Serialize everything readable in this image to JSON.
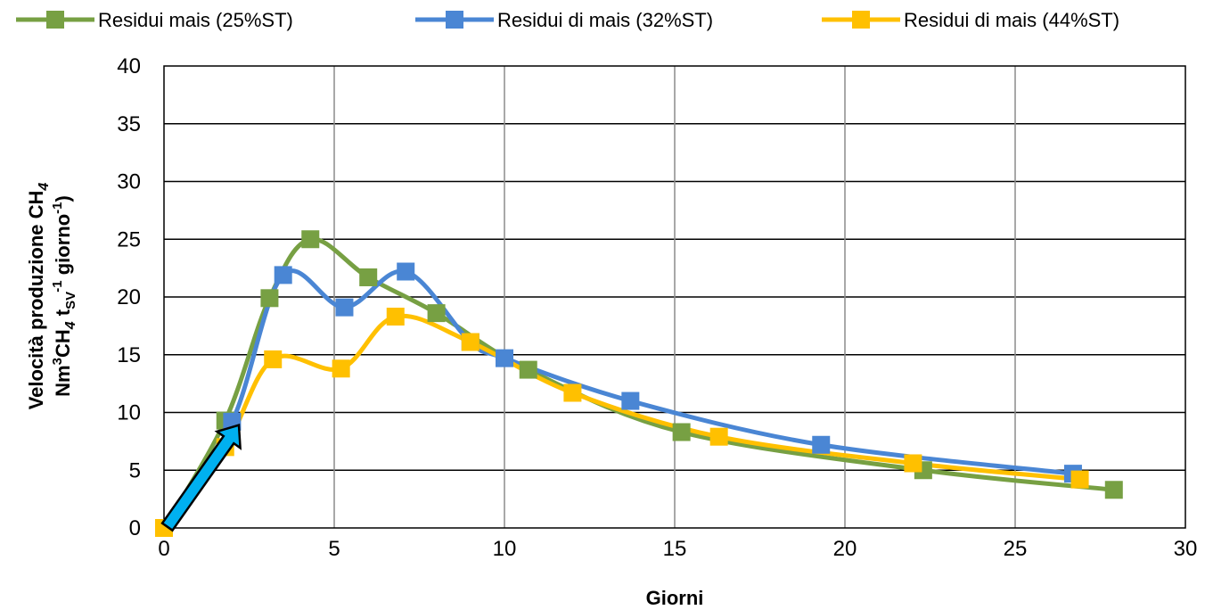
{
  "chart_data": {
    "type": "line",
    "xlabel": "Giorni",
    "ylabel_line1": "Velocità produzione CH",
    "ylabel_line1_sub": "4",
    "ylabel_line2_parts": {
      "a": "Nm",
      "a_sup": "3",
      "b": "CH",
      "b_sub": "4",
      "c": " t",
      "c_sub": "SV",
      "c_sup": "-1",
      "d": " giorno",
      "d_sup": "-1",
      "e": ")"
    },
    "xlim": [
      0,
      30
    ],
    "ylim": [
      0,
      40
    ],
    "x_ticks": [
      0,
      5,
      10,
      15,
      20,
      25,
      30
    ],
    "y_ticks": [
      0,
      5,
      10,
      15,
      20,
      25,
      30,
      35,
      40
    ],
    "grid": {
      "vertical": true,
      "horizontal": true
    },
    "legend_position": "top",
    "series": [
      {
        "name": "Residui mais  (25%ST)",
        "color": "#77A043",
        "points": [
          [
            0,
            0
          ],
          [
            1.8,
            9.3
          ],
          [
            3.1,
            19.9
          ],
          [
            4.3,
            25.0
          ],
          [
            6.0,
            21.7
          ],
          [
            8.0,
            18.6
          ],
          [
            10.7,
            13.7
          ],
          [
            15.2,
            8.3
          ],
          [
            22.3,
            5.0
          ],
          [
            27.9,
            3.3
          ]
        ]
      },
      {
        "name": "Residui di mais  (32%ST)",
        "color": "#4A86D4",
        "points": [
          [
            0,
            0
          ],
          [
            2.0,
            9.2
          ],
          [
            3.5,
            21.9
          ],
          [
            5.3,
            19.1
          ],
          [
            7.1,
            22.2
          ],
          [
            9.0,
            16.1
          ],
          [
            10.0,
            14.7
          ],
          [
            13.7,
            11.0
          ],
          [
            19.3,
            7.2
          ],
          [
            26.7,
            4.7
          ]
        ]
      },
      {
        "name": "Residui di mais  (44%ST)",
        "color": "#FFC000",
        "points": [
          [
            0,
            0
          ],
          [
            1.8,
            7.0
          ],
          [
            3.2,
            14.6
          ],
          [
            5.2,
            13.8
          ],
          [
            6.8,
            18.3
          ],
          [
            9.0,
            16.1
          ],
          [
            12.0,
            11.7
          ],
          [
            16.3,
            7.9
          ],
          [
            22.0,
            5.6
          ],
          [
            26.9,
            4.2
          ]
        ]
      }
    ],
    "annotation": {
      "type": "arrow",
      "color": "#00B0F0",
      "from": [
        0.1,
        0.1
      ],
      "to": [
        2.2,
        8.9
      ]
    }
  }
}
